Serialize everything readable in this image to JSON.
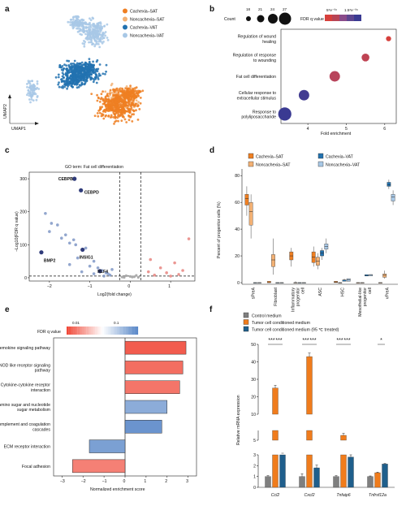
{
  "colors": {
    "cachexia_sat": "#ef7f22",
    "noncachexia_sat": "#f3b174",
    "cachexia_vat": "#2272b0",
    "noncachexia_vat": "#a8c8e6",
    "dot_grad": [
      "#d6403c",
      "#8a4b8a",
      "#3a3a92"
    ],
    "fdr_grad": [
      "#f04a3a",
      "#ffffff",
      "#5a88c8"
    ],
    "ctrl": "#7f7f7f",
    "tcm": "#f07c1c",
    "tcm95": "#1f5f8c"
  },
  "panels": {
    "a": "a",
    "b": "b",
    "c": "c",
    "d": "d",
    "e": "e",
    "f": "f"
  },
  "panel_a": {
    "legend": [
      "Cachexia–SAT",
      "Noncachexia–SAT",
      "Cachexia–VAT",
      "Noncachexia–VAT"
    ],
    "xlabel": "UMAP1",
    "ylabel": "UMAP2"
  },
  "panel_b": {
    "count_label": "Count",
    "count_values": [
      "18",
      "21",
      "24",
      "27"
    ],
    "fdr_label": "FDR q value",
    "fdr_ticks": [
      "5*e⁻⁰⁶",
      "1.5*e⁻⁰⁶"
    ],
    "xlabel": "Fold enrichment",
    "xticks": [
      "4",
      "5",
      "6"
    ]
  },
  "panel_c": {
    "title": "GO term: Fat cell differentiation",
    "xlabel": "Log2(fold change)",
    "ylabel": "−Log10(FDR q value)",
    "xticks": [
      "−2",
      "−1",
      "0",
      "1"
    ],
    "yticks": [
      "0",
      "100",
      "200",
      "300"
    ]
  },
  "panel_d": {
    "ylabel": "Percent of progenitor cells (%)",
    "yticks": [
      "0",
      "20",
      "40",
      "60",
      "80"
    ],
    "legend": [
      "Cachexia–SAT",
      "Noncachexia–SAT",
      "Cachexia–VAT",
      "Noncachexia–VAT"
    ]
  },
  "panel_e": {
    "legend_title": "FDR q value",
    "legend_ticks": [
      "0.01",
      "0.1"
    ],
    "xlabel": "Normalized enrichment score",
    "xticks": [
      "−3",
      "−2",
      "−1",
      "0",
      "1",
      "2",
      "3"
    ]
  },
  "panel_f": {
    "legend": [
      "Control medium",
      "Tumor cell conditioned medium",
      "Tumor cell conditioned medium (95 ℃ treated)"
    ],
    "ylabel": "Relative mRNA expression",
    "yticks": [
      "0",
      "1",
      "2",
      "3",
      "5",
      "10",
      "20",
      "30",
      "40",
      "50"
    ],
    "star_groups": [
      "*** ***",
      "*** ***",
      "*** ***",
      "*"
    ]
  },
  "chart_data": [
    {
      "type": "scatter",
      "panel": "a",
      "series": [
        {
          "name": "Cachexia–SAT"
        },
        {
          "name": "Noncachexia–SAT"
        },
        {
          "name": "Cachexia–VAT"
        },
        {
          "name": "Noncachexia–VAT"
        }
      ]
    },
    {
      "type": "scatter",
      "panel": "b",
      "xlabel": "Fold enrichment",
      "xlim": [
        3.3,
        6.3
      ],
      "categories": [
        "Regulation of wound healing",
        "Regulation of response to wounding",
        "Fat cell differentiation",
        "Cellular response to extracellular stimulus",
        "Response to polyliposaccharide"
      ],
      "x": [
        6.1,
        5.5,
        4.7,
        3.9,
        3.4
      ],
      "count": [
        18,
        21,
        24,
        24,
        27
      ],
      "fdr_rank": [
        0,
        0.15,
        0.2,
        0.95,
        1
      ]
    },
    {
      "type": "scatter",
      "panel": "c",
      "xlabel": "Log2(fold change)",
      "ylabel": "−Log10(FDR q value)",
      "xlim": [
        -2.5,
        1.6
      ],
      "ylim": [
        -10,
        320
      ],
      "thresholds": {
        "x": [
          -0.26,
          0.26
        ],
        "y": 5
      },
      "labeled_points": [
        {
          "label": "CEBPB",
          "x": -1.38,
          "y": 300
        },
        {
          "label": "CEBPD",
          "x": -1.22,
          "y": 265
        },
        {
          "label": "BMP2",
          "x": -2.2,
          "y": 77
        },
        {
          "label": "INSIG1",
          "x": -1.18,
          "y": 85
        },
        {
          "label": "KLF4",
          "x": -0.75,
          "y": 20
        }
      ],
      "points_blue": [
        [
          -2.1,
          195
        ],
        [
          -1.95,
          165
        ],
        [
          -2.0,
          140
        ],
        [
          -1.8,
          160
        ],
        [
          -1.7,
          120
        ],
        [
          -1.6,
          130
        ],
        [
          -1.5,
          105
        ],
        [
          -1.4,
          115
        ],
        [
          -1.35,
          100
        ],
        [
          -1.1,
          90
        ],
        [
          -0.9,
          50
        ],
        [
          -1.0,
          35
        ],
        [
          -0.8,
          30
        ],
        [
          -0.7,
          22
        ],
        [
          -0.6,
          15
        ],
        [
          -0.55,
          12
        ],
        [
          -0.5,
          8
        ],
        [
          -0.9,
          12
        ],
        [
          -1.2,
          18
        ],
        [
          -1.5,
          40
        ],
        [
          -0.45,
          25
        ],
        [
          -1.3,
          60
        ],
        [
          -0.65,
          5
        ]
      ],
      "points_red": [
        [
          0.5,
          55
        ],
        [
          0.75,
          30
        ],
        [
          1.1,
          45
        ],
        [
          1.45,
          118
        ],
        [
          0.9,
          15
        ],
        [
          0.6,
          8
        ],
        [
          1.3,
          22
        ],
        [
          1.0,
          5
        ],
        [
          0.45,
          18
        ],
        [
          1.2,
          10
        ]
      ],
      "points_grey": [
        [
          -0.2,
          2
        ],
        [
          0.1,
          3
        ],
        [
          -0.1,
          6
        ],
        [
          0.2,
          1
        ],
        [
          0.0,
          4
        ],
        [
          -0.15,
          1
        ],
        [
          0.15,
          7
        ],
        [
          0.05,
          2
        ]
      ]
    },
    {
      "type": "box",
      "panel": "d",
      "ylabel": "Percent of progenitor cells (%)",
      "ylim": [
        0,
        85
      ],
      "categories": [
        "sPreA",
        "Fibroblast",
        "Inflammatory progenitor cell",
        "ASC",
        "HSC",
        "Mesothelial-like progenitor cell",
        "vPreA"
      ],
      "series": [
        {
          "name": "Cachexia–SAT",
          "boxes": [
            [
              50,
              58,
              63,
              66,
              72
            ],
            [
              0,
              0,
              0,
              1,
              1
            ],
            [
              12,
              17,
              20,
              23,
              26
            ],
            [
              12,
              15,
              19,
              23,
              27
            ],
            [
              0,
              0,
              0.5,
              1,
              1
            ],
            [
              0,
              0,
              0,
              0,
              0
            ],
            [
              0,
              0,
              0,
              0,
              0
            ]
          ]
        },
        {
          "name": "Noncachexia–SAT",
          "boxes": [
            [
              33,
              43,
              53,
              60,
              66
            ],
            [
              6,
              12,
              17,
              21,
              33
            ],
            [
              0,
              0,
              0,
              0,
              1
            ],
            [
              10,
              13,
              16,
              19,
              22
            ],
            [
              0,
              0,
              0,
              0,
              0
            ],
            [
              0,
              0,
              0,
              0,
              0
            ],
            [
              3,
              4,
              5.5,
              6.5,
              9
            ]
          ]
        },
        {
          "name": "Cachexia–VAT",
          "boxes": [
            [
              0,
              0,
              0,
              0,
              0
            ],
            [
              0,
              0,
              0,
              0,
              0
            ],
            [
              0,
              0,
              0,
              0,
              0
            ],
            [
              17,
              20,
              22,
              24,
              26
            ],
            [
              1,
              1,
              2,
              2,
              3
            ],
            [
              5,
              5,
              5,
              6,
              6
            ],
            [
              70,
              72,
              73,
              75,
              77
            ]
          ]
        },
        {
          "name": "Noncachexia–VAT",
          "boxes": [
            [
              0,
              0,
              0,
              0,
              0
            ],
            [
              0,
              0,
              0,
              0,
              0
            ],
            [
              0,
              0,
              0,
              0,
              0
            ],
            [
              22,
              25,
              27,
              29,
              33
            ],
            [
              1,
              1,
              2,
              3,
              3
            ],
            [
              5,
              5,
              6,
              6,
              6
            ],
            [
              58,
              61,
              64,
              66,
              69
            ]
          ]
        }
      ]
    },
    {
      "type": "bar",
      "panel": "e",
      "orientation": "horizontal",
      "xlabel": "Normalized enrichment score",
      "xlim": [
        -3,
        3
      ],
      "categories": [
        "Chemokine signaling pathway",
        "NOD like receptor signaling pathway",
        "Cytokine-cytokine receptor interaction",
        "Amino sugar and nucleotide sugar metabolism",
        "Complement and coagulation cascades",
        "ECM receptor interaction",
        "Focal adhesion"
      ],
      "values": [
        2.9,
        2.75,
        2.6,
        2.0,
        1.75,
        -1.7,
        -2.5
      ],
      "fdr_rank": [
        0.05,
        0.1,
        0.12,
        0.85,
        0.95,
        0.9,
        0.15
      ]
    },
    {
      "type": "bar",
      "panel": "f",
      "ylabel": "Relative mRNA expression",
      "categories": [
        "Ccl2",
        "Cxcl2",
        "Tnfaip6",
        "Tnfrsf12a"
      ],
      "series": [
        {
          "name": "Control medium",
          "values": [
            1.0,
            1.0,
            1.0,
            1.0
          ],
          "errors": [
            0.08,
            0.25,
            0.08,
            0.05
          ]
        },
        {
          "name": "Tumor cell conditioned medium",
          "values": [
            25,
            43,
            5.5,
            1.35
          ],
          "errors": [
            1.5,
            2.0,
            0.2,
            0.05
          ]
        },
        {
          "name": "Tumor cell conditioned medium (95 ℃ treated)",
          "values": [
            3.3,
            1.8,
            2.8,
            2.15
          ],
          "errors": [
            0.08,
            0.25,
            0.2,
            0.05
          ]
        }
      ]
    }
  ]
}
